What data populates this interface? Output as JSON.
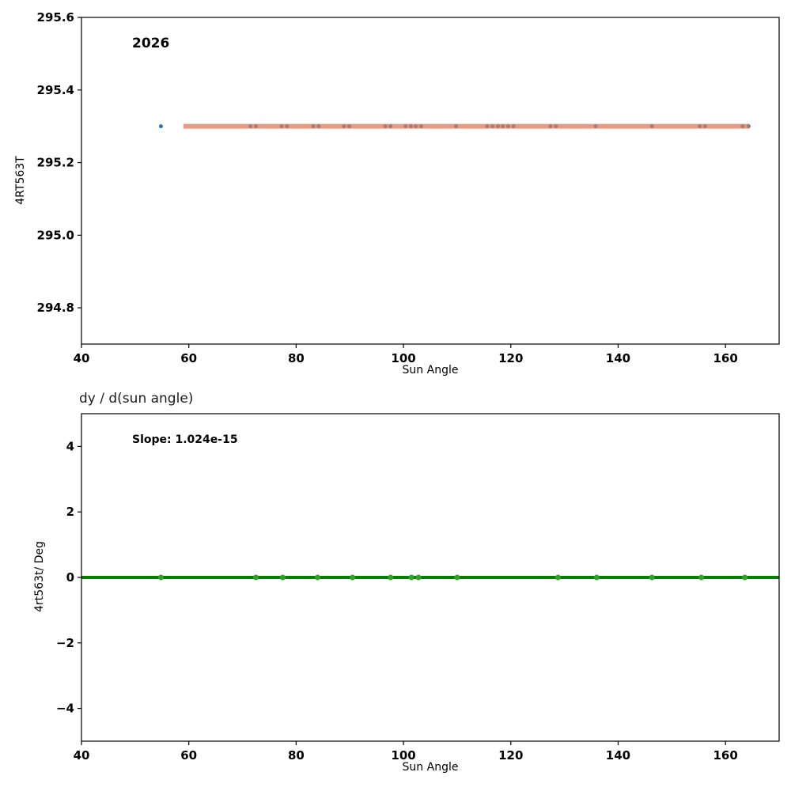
{
  "figure": {
    "background": "#ffffff"
  },
  "chart_data": [
    {
      "type": "scatter",
      "annotation": "2026",
      "xlabel": "Sun Angle",
      "ylabel": "4RT563T",
      "xlim": [
        40,
        170
      ],
      "ylim": [
        294.7,
        295.6
      ],
      "xticks": [
        40,
        60,
        80,
        100,
        120,
        140,
        160
      ],
      "xtick_labels": [
        "40",
        "60",
        "80",
        "100",
        "120",
        "140",
        "160"
      ],
      "yticks": [
        294.8,
        295.0,
        295.2,
        295.4,
        295.6
      ],
      "ytick_labels": [
        "294.8",
        "295.0",
        "295.2",
        "295.4",
        "295.6"
      ],
      "grid": false,
      "legend": "none",
      "series": [
        {
          "name": "measurements",
          "type": "scatter",
          "color": "#1f77b4",
          "marker_radius": 2.5,
          "x": [
            54.8,
            71.5,
            72.5,
            77.3,
            78.3,
            83.2,
            84.2,
            88.9,
            89.9,
            96.6,
            97.6,
            100.4,
            101.4,
            102.3,
            103.3,
            109.8,
            115.6,
            116.6,
            117.6,
            118.5,
            119.5,
            120.5,
            127.4,
            128.4,
            135.8,
            146.3,
            155.2,
            156.2,
            163.2,
            164.3
          ],
          "y": [
            295.3,
            295.3,
            295.3,
            295.3,
            295.3,
            295.3,
            295.3,
            295.3,
            295.3,
            295.3,
            295.3,
            295.3,
            295.3,
            295.3,
            295.3,
            295.3,
            295.3,
            295.3,
            295.3,
            295.3,
            295.3,
            295.3,
            295.3,
            295.3,
            295.3,
            295.3,
            295.3,
            295.3,
            295.3,
            295.3
          ]
        },
        {
          "name": "fit-line",
          "type": "line",
          "color": "#E0795B",
          "opacity": 0.75,
          "linewidth": 6,
          "x": [
            59,
            164.5
          ],
          "y": [
            295.3,
            295.3
          ]
        }
      ]
    },
    {
      "type": "scatter",
      "title": "dy / d(sun angle)",
      "annotation": "Slope: 1.024e-15",
      "xlabel": "Sun Angle",
      "ylabel": "4rt563t/ Deg",
      "xlim": [
        40,
        170
      ],
      "ylim": [
        -5,
        5
      ],
      "xticks": [
        40,
        60,
        80,
        100,
        120,
        140,
        160
      ],
      "xtick_labels": [
        "40",
        "60",
        "80",
        "100",
        "120",
        "140",
        "160"
      ],
      "yticks": [
        -4,
        -2,
        0,
        2,
        4
      ],
      "ytick_labels": [
        "−4",
        "−2",
        "0",
        "2",
        "4"
      ],
      "grid": false,
      "legend": "none",
      "series": [
        {
          "name": "zero-slope-line",
          "type": "line",
          "color": "#007f00",
          "opacity": 1,
          "linewidth": 4,
          "x": [
            40,
            170
          ],
          "y": [
            0,
            0
          ]
        },
        {
          "name": "derivative-points",
          "type": "scatter",
          "color": "#33a02c",
          "marker_radius": 3.5,
          "x": [
            54.8,
            72.5,
            77.5,
            84.0,
            90.5,
            97.6,
            101.5,
            102.8,
            110.0,
            128.8,
            136.0,
            146.3,
            155.5,
            163.6
          ],
          "y": [
            0,
            0,
            0,
            0,
            0,
            0,
            0,
            0,
            0,
            0,
            0,
            0,
            0,
            0
          ]
        }
      ]
    }
  ]
}
